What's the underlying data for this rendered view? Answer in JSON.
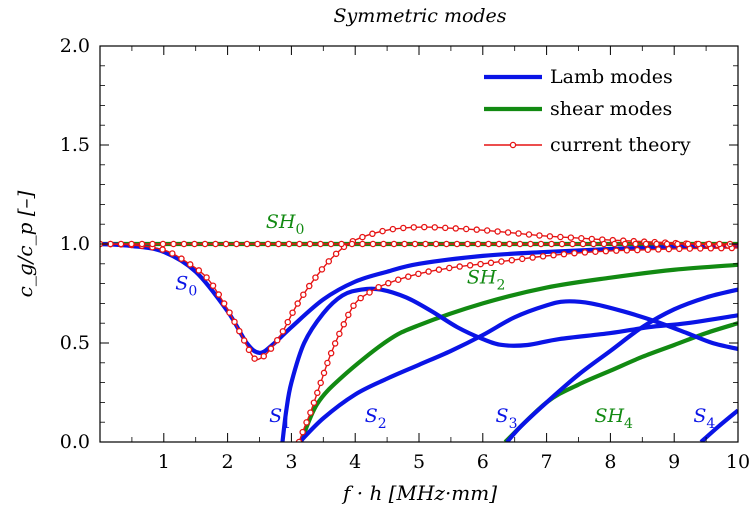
{
  "colors": {
    "lamb": "#0a14e6",
    "shear": "#128a12",
    "theory": "#e61414"
  },
  "chart_data": {
    "type": "line",
    "title": "Symmetric modes",
    "xlabel": "f · h [MHz·mm]",
    "ylabel": "c_g/c_p [–]",
    "xlim": [
      0,
      10
    ],
    "ylim": [
      0,
      2
    ],
    "xticks": [
      1,
      2,
      3,
      4,
      5,
      6,
      7,
      8,
      9,
      10
    ],
    "yticks": [
      0.0,
      0.5,
      1.0,
      1.5,
      2.0
    ],
    "xtick_labels": [
      "1",
      "2",
      "3",
      "4",
      "5",
      "6",
      "7",
      "8",
      "9",
      "10"
    ],
    "ytick_labels": [
      "0.0",
      "0.5",
      "1.0",
      "1.5",
      "2.0"
    ],
    "grid": false,
    "legend": {
      "position": "top-right",
      "entries": [
        {
          "key": "lamb",
          "label": "Lamb modes"
        },
        {
          "key": "shear",
          "label": "shear modes"
        },
        {
          "key": "theory",
          "label": "current theory"
        }
      ]
    },
    "series": [
      {
        "group": "lamb",
        "points": [
          [
            0,
            1.0
          ],
          [
            0.5,
            0.99
          ],
          [
            1.0,
            0.96
          ],
          [
            1.5,
            0.86
          ],
          [
            2.0,
            0.66
          ],
          [
            2.3,
            0.5
          ],
          [
            2.5,
            0.45
          ],
          [
            2.7,
            0.49
          ],
          [
            3.0,
            0.58
          ],
          [
            3.5,
            0.72
          ],
          [
            4.0,
            0.81
          ],
          [
            4.5,
            0.86
          ],
          [
            5.0,
            0.9
          ],
          [
            6.0,
            0.94
          ],
          [
            7.0,
            0.96
          ],
          [
            8.0,
            0.975
          ],
          [
            9.0,
            0.985
          ],
          [
            10.0,
            0.99
          ]
        ]
      },
      {
        "group": "lamb",
        "points": [
          [
            2.86,
            0.0
          ],
          [
            2.92,
            0.16
          ],
          [
            3.0,
            0.3
          ],
          [
            3.2,
            0.5
          ],
          [
            3.5,
            0.65
          ],
          [
            3.8,
            0.74
          ],
          [
            4.1,
            0.77
          ],
          [
            4.4,
            0.77
          ],
          [
            4.8,
            0.73
          ],
          [
            5.2,
            0.66
          ],
          [
            5.6,
            0.58
          ],
          [
            6.0,
            0.52
          ],
          [
            6.3,
            0.49
          ],
          [
            6.7,
            0.49
          ],
          [
            7.2,
            0.52
          ],
          [
            8.0,
            0.55
          ],
          [
            8.6,
            0.58
          ],
          [
            9.2,
            0.6
          ],
          [
            10.0,
            0.64
          ]
        ]
      },
      {
        "group": "lamb",
        "points": [
          [
            3.13,
            0.0
          ],
          [
            3.5,
            0.12
          ],
          [
            4.0,
            0.24
          ],
          [
            4.5,
            0.32
          ],
          [
            5.0,
            0.39
          ],
          [
            5.5,
            0.46
          ],
          [
            6.0,
            0.54
          ],
          [
            6.5,
            0.63
          ],
          [
            7.0,
            0.69
          ],
          [
            7.3,
            0.71
          ],
          [
            7.7,
            0.7
          ],
          [
            8.2,
            0.66
          ],
          [
            8.7,
            0.61
          ],
          [
            9.2,
            0.55
          ],
          [
            9.6,
            0.5
          ],
          [
            10.0,
            0.47
          ]
        ]
      },
      {
        "group": "lamb",
        "points": [
          [
            6.38,
            0.0
          ],
          [
            6.6,
            0.08
          ],
          [
            7.0,
            0.2
          ],
          [
            7.5,
            0.34
          ],
          [
            8.0,
            0.46
          ],
          [
            8.5,
            0.58
          ],
          [
            9.0,
            0.67
          ],
          [
            9.5,
            0.73
          ],
          [
            10.0,
            0.77
          ]
        ]
      },
      {
        "group": "lamb",
        "points": [
          [
            9.42,
            0.0
          ],
          [
            9.7,
            0.08
          ],
          [
            10.0,
            0.16
          ]
        ]
      },
      {
        "group": "shear",
        "points": [
          [
            0,
            1.0
          ],
          [
            10,
            1.0
          ]
        ]
      },
      {
        "group": "shear",
        "points": [
          [
            3.15,
            0.0
          ],
          [
            3.4,
            0.19
          ],
          [
            3.8,
            0.33
          ],
          [
            4.5,
            0.51
          ],
          [
            5.0,
            0.59
          ],
          [
            6.0,
            0.7
          ],
          [
            7.0,
            0.78
          ],
          [
            8.0,
            0.83
          ],
          [
            9.0,
            0.87
          ],
          [
            10.0,
            0.895
          ]
        ]
      },
      {
        "group": "shear",
        "points": [
          [
            6.35,
            0.0
          ],
          [
            7.0,
            0.2
          ],
          [
            7.5,
            0.29
          ],
          [
            8.0,
            0.36
          ],
          [
            8.5,
            0.43
          ],
          [
            9.0,
            0.49
          ],
          [
            9.5,
            0.55
          ],
          [
            10.0,
            0.6
          ]
        ]
      },
      {
        "group": "theory",
        "points": [
          [
            0,
            1.0
          ],
          [
            0.5,
            0.995
          ],
          [
            1.0,
            0.97
          ],
          [
            1.4,
            0.9
          ],
          [
            1.7,
            0.82
          ],
          [
            2.0,
            0.67
          ],
          [
            2.2,
            0.55
          ],
          [
            2.4,
            0.43
          ],
          [
            2.5,
            0.42
          ],
          [
            2.65,
            0.46
          ],
          [
            2.85,
            0.55
          ],
          [
            3.1,
            0.7
          ],
          [
            3.4,
            0.84
          ],
          [
            3.7,
            0.95
          ],
          [
            4.0,
            1.02
          ],
          [
            4.5,
            1.07
          ],
          [
            5.0,
            1.085
          ],
          [
            5.5,
            1.08
          ],
          [
            6.0,
            1.07
          ],
          [
            6.5,
            1.055
          ],
          [
            7.0,
            1.04
          ],
          [
            7.5,
            1.03
          ],
          [
            8.0,
            1.02
          ],
          [
            9.0,
            1.005
          ],
          [
            10.0,
            0.99
          ]
        ]
      },
      {
        "group": "theory",
        "points": [
          [
            3.12,
            0.0
          ],
          [
            3.2,
            0.07
          ],
          [
            3.3,
            0.15
          ],
          [
            3.45,
            0.29
          ],
          [
            3.6,
            0.43
          ],
          [
            3.8,
            0.58
          ],
          [
            4.0,
            0.7
          ],
          [
            4.25,
            0.76
          ],
          [
            4.5,
            0.8
          ],
          [
            5.0,
            0.85
          ],
          [
            5.5,
            0.88
          ],
          [
            6.0,
            0.9
          ],
          [
            6.5,
            0.92
          ],
          [
            7.0,
            0.94
          ],
          [
            7.5,
            0.955
          ],
          [
            8.0,
            0.965
          ],
          [
            8.5,
            0.97
          ],
          [
            9.0,
            0.975
          ],
          [
            9.5,
            0.978
          ],
          [
            10.0,
            0.98
          ]
        ]
      },
      {
        "group": "theory",
        "points": [
          [
            0,
            1.0
          ],
          [
            10,
            1.0
          ]
        ]
      }
    ],
    "annotations": [
      {
        "name": "SH",
        "sub": "0",
        "x": 2.6,
        "y": 1.08,
        "group": "shear"
      },
      {
        "name": "S",
        "sub": "0",
        "x": 1.18,
        "y": 0.77,
        "group": "lamb"
      },
      {
        "name": "SH",
        "sub": "2",
        "x": 5.75,
        "y": 0.8,
        "group": "shear"
      },
      {
        "name": "S",
        "sub": "1",
        "x": 2.65,
        "y": 0.1,
        "group": "lamb"
      },
      {
        "name": "S",
        "sub": "2",
        "x": 4.15,
        "y": 0.1,
        "group": "lamb"
      },
      {
        "name": "S",
        "sub": "3",
        "x": 6.2,
        "y": 0.1,
        "group": "lamb"
      },
      {
        "name": "SH",
        "sub": "4",
        "x": 7.75,
        "y": 0.1,
        "group": "shear"
      },
      {
        "name": "S",
        "sub": "4",
        "x": 9.3,
        "y": 0.1,
        "group": "lamb"
      }
    ]
  }
}
